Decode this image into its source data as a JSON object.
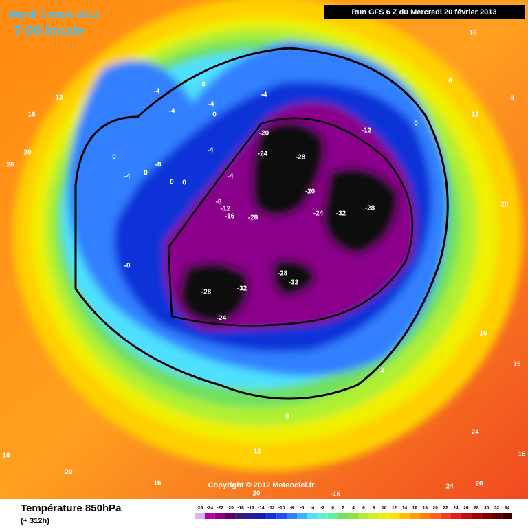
{
  "header": {
    "date": "Mardi 5 mars 2013",
    "time": "7:00 locale",
    "run": "Run GFS 6 Z du Mercredi 20 février 2013"
  },
  "copyright": "Copyright © 2012 Meteociel.fr",
  "footer": {
    "title": "Température 850hPa",
    "lead": "(+ 312h)"
  },
  "contour_labels": [
    -4,
    -4,
    8,
    -4,
    0,
    -4,
    12,
    16,
    20,
    20,
    0,
    -4,
    -8,
    0,
    -4,
    -4,
    0,
    0,
    -8,
    -12,
    -16,
    -20,
    -24,
    -28,
    -20,
    -28,
    -24,
    -32,
    -28,
    -12,
    0,
    8,
    12,
    16,
    8,
    20,
    -8,
    -28,
    -32,
    -28,
    -32,
    -24,
    16,
    4,
    16,
    0,
    12,
    16,
    20,
    16,
    20,
    -16,
    24,
    24,
    20,
    16
  ],
  "scale": {
    "labels": [
      -26,
      -24,
      -22,
      -20,
      -18,
      -16,
      -14,
      -12,
      -10,
      -8,
      -6,
      -4,
      -2,
      0,
      2,
      4,
      6,
      8,
      10,
      12,
      14,
      16,
      18,
      20,
      22,
      24,
      26,
      28,
      30,
      32,
      34
    ],
    "colors": [
      "#d9b3e6",
      "#b000b0",
      "#8a008a",
      "#600060",
      "#3a1a6a",
      "#2a1a9a",
      "#1a1ab4",
      "#1030d8",
      "#2050f0",
      "#3080ff",
      "#40b0ff",
      "#50e0ff",
      "#60f0d0",
      "#60f0a0",
      "#70e060",
      "#90e040",
      "#b0f030",
      "#d0f020",
      "#f0f000",
      "#ffe000",
      "#ffc000",
      "#ffa000",
      "#ff8000",
      "#ff6020",
      "#f04020",
      "#e02020",
      "#c01010",
      "#a00000",
      "#800000",
      "#600000",
      "#400000"
    ]
  }
}
